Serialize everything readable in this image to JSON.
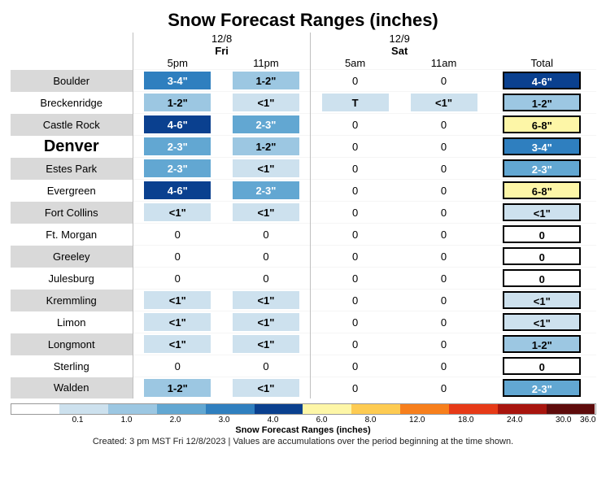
{
  "title": "Snow Forecast Ranges (inches)",
  "group1": {
    "date": "12/8",
    "day": "Fri",
    "times": [
      "5pm",
      "11pm"
    ]
  },
  "group2": {
    "date": "12/9",
    "day": "Sat",
    "times": [
      "5am",
      "11am"
    ]
  },
  "total_label": "Total",
  "colors": {
    "zero": {
      "bg": "#ffffff",
      "fg": "#000000"
    },
    "lt1": {
      "bg": "#cde1ee",
      "fg": "#000000"
    },
    "r1_2": {
      "bg": "#9cc7e2",
      "fg": "#000000"
    },
    "r2_3": {
      "bg": "#62a7d2",
      "fg": "#ffffff"
    },
    "r3_4": {
      "bg": "#2f7fbf",
      "fg": "#ffffff"
    },
    "r4_6": {
      "bg": "#0a408f",
      "fg": "#ffffff"
    },
    "r6_8": {
      "bg": "#fdf6a7",
      "fg": "#000000"
    }
  },
  "rows": [
    {
      "loc": "Boulder",
      "alt": true,
      "cells": [
        {
          "v": "3-4\"",
          "c": "r3_4"
        },
        {
          "v": "1-2\"",
          "c": "r1_2"
        },
        {
          "v": "0",
          "c": "zero"
        },
        {
          "v": "0",
          "c": "zero"
        }
      ],
      "total": {
        "v": "4-6\"",
        "c": "r4_6"
      }
    },
    {
      "loc": "Breckenridge",
      "alt": false,
      "cells": [
        {
          "v": "1-2\"",
          "c": "r1_2"
        },
        {
          "v": "<1\"",
          "c": "lt1"
        },
        {
          "v": "T",
          "c": "lt1"
        },
        {
          "v": "<1\"",
          "c": "lt1"
        }
      ],
      "total": {
        "v": "1-2\"",
        "c": "r1_2"
      }
    },
    {
      "loc": "Castle Rock",
      "alt": true,
      "cells": [
        {
          "v": "4-6\"",
          "c": "r4_6"
        },
        {
          "v": "2-3\"",
          "c": "r2_3"
        },
        {
          "v": "0",
          "c": "zero"
        },
        {
          "v": "0",
          "c": "zero"
        }
      ],
      "total": {
        "v": "6-8\"",
        "c": "r6_8"
      }
    },
    {
      "loc": "Denver",
      "alt": false,
      "denver": true,
      "cells": [
        {
          "v": "2-3\"",
          "c": "r2_3"
        },
        {
          "v": "1-2\"",
          "c": "r1_2"
        },
        {
          "v": "0",
          "c": "zero"
        },
        {
          "v": "0",
          "c": "zero"
        }
      ],
      "total": {
        "v": "3-4\"",
        "c": "r3_4"
      }
    },
    {
      "loc": "Estes Park",
      "alt": true,
      "cells": [
        {
          "v": "2-3\"",
          "c": "r2_3"
        },
        {
          "v": "<1\"",
          "c": "lt1"
        },
        {
          "v": "0",
          "c": "zero"
        },
        {
          "v": "0",
          "c": "zero"
        }
      ],
      "total": {
        "v": "2-3\"",
        "c": "r2_3"
      }
    },
    {
      "loc": "Evergreen",
      "alt": false,
      "cells": [
        {
          "v": "4-6\"",
          "c": "r4_6"
        },
        {
          "v": "2-3\"",
          "c": "r2_3"
        },
        {
          "v": "0",
          "c": "zero"
        },
        {
          "v": "0",
          "c": "zero"
        }
      ],
      "total": {
        "v": "6-8\"",
        "c": "r6_8"
      }
    },
    {
      "loc": "Fort Collins",
      "alt": true,
      "cells": [
        {
          "v": "<1\"",
          "c": "lt1"
        },
        {
          "v": "<1\"",
          "c": "lt1"
        },
        {
          "v": "0",
          "c": "zero"
        },
        {
          "v": "0",
          "c": "zero"
        }
      ],
      "total": {
        "v": "<1\"",
        "c": "lt1"
      }
    },
    {
      "loc": "Ft. Morgan",
      "alt": false,
      "cells": [
        {
          "v": "0",
          "c": "zero"
        },
        {
          "v": "0",
          "c": "zero"
        },
        {
          "v": "0",
          "c": "zero"
        },
        {
          "v": "0",
          "c": "zero"
        }
      ],
      "total": {
        "v": "0",
        "c": "zero"
      }
    },
    {
      "loc": "Greeley",
      "alt": true,
      "cells": [
        {
          "v": "0",
          "c": "zero"
        },
        {
          "v": "0",
          "c": "zero"
        },
        {
          "v": "0",
          "c": "zero"
        },
        {
          "v": "0",
          "c": "zero"
        }
      ],
      "total": {
        "v": "0",
        "c": "zero"
      }
    },
    {
      "loc": "Julesburg",
      "alt": false,
      "cells": [
        {
          "v": "0",
          "c": "zero"
        },
        {
          "v": "0",
          "c": "zero"
        },
        {
          "v": "0",
          "c": "zero"
        },
        {
          "v": "0",
          "c": "zero"
        }
      ],
      "total": {
        "v": "0",
        "c": "zero"
      }
    },
    {
      "loc": "Kremmling",
      "alt": true,
      "cells": [
        {
          "v": "<1\"",
          "c": "lt1"
        },
        {
          "v": "<1\"",
          "c": "lt1"
        },
        {
          "v": "0",
          "c": "zero"
        },
        {
          "v": "0",
          "c": "zero"
        }
      ],
      "total": {
        "v": "<1\"",
        "c": "lt1"
      }
    },
    {
      "loc": "Limon",
      "alt": false,
      "cells": [
        {
          "v": "<1\"",
          "c": "lt1"
        },
        {
          "v": "<1\"",
          "c": "lt1"
        },
        {
          "v": "0",
          "c": "zero"
        },
        {
          "v": "0",
          "c": "zero"
        }
      ],
      "total": {
        "v": "<1\"",
        "c": "lt1"
      }
    },
    {
      "loc": "Longmont",
      "alt": true,
      "cells": [
        {
          "v": "<1\"",
          "c": "lt1"
        },
        {
          "v": "<1\"",
          "c": "lt1"
        },
        {
          "v": "0",
          "c": "zero"
        },
        {
          "v": "0",
          "c": "zero"
        }
      ],
      "total": {
        "v": "1-2\"",
        "c": "r1_2"
      }
    },
    {
      "loc": "Sterling",
      "alt": false,
      "cells": [
        {
          "v": "0",
          "c": "zero"
        },
        {
          "v": "0",
          "c": "zero"
        },
        {
          "v": "0",
          "c": "zero"
        },
        {
          "v": "0",
          "c": "zero"
        }
      ],
      "total": {
        "v": "0",
        "c": "zero"
      }
    },
    {
      "loc": "Walden",
      "alt": true,
      "cells": [
        {
          "v": "1-2\"",
          "c": "r1_2"
        },
        {
          "v": "<1\"",
          "c": "lt1"
        },
        {
          "v": "0",
          "c": "zero"
        },
        {
          "v": "0",
          "c": "zero"
        }
      ],
      "total": {
        "v": "2-3\"",
        "c": "r2_3"
      }
    }
  ],
  "legend": {
    "stops": [
      {
        "label": "0.1",
        "color": "#ffffff"
      },
      {
        "label": "1.0",
        "color": "#cde1ee"
      },
      {
        "label": "2.0",
        "color": "#9cc7e2"
      },
      {
        "label": "3.0",
        "color": "#62a7d2"
      },
      {
        "label": "4.0",
        "color": "#2f7fbf"
      },
      {
        "label": "6.0",
        "color": "#0a408f"
      },
      {
        "label": "8.0",
        "color": "#fdf6a7"
      },
      {
        "label": "12.0",
        "color": "#fdcb52"
      },
      {
        "label": "18.0",
        "color": "#f77f1c"
      },
      {
        "label": "24.0",
        "color": "#e63a17"
      },
      {
        "label": "30.0",
        "color": "#a8150e"
      },
      {
        "label": "36.0",
        "color": "#5e0b0b"
      }
    ],
    "caption": "Snow Forecast Ranges (inches)"
  },
  "footnote": "Created: 3 pm MST Fri 12/8/2023  |  Values are accumulations over the period beginning at the time shown."
}
